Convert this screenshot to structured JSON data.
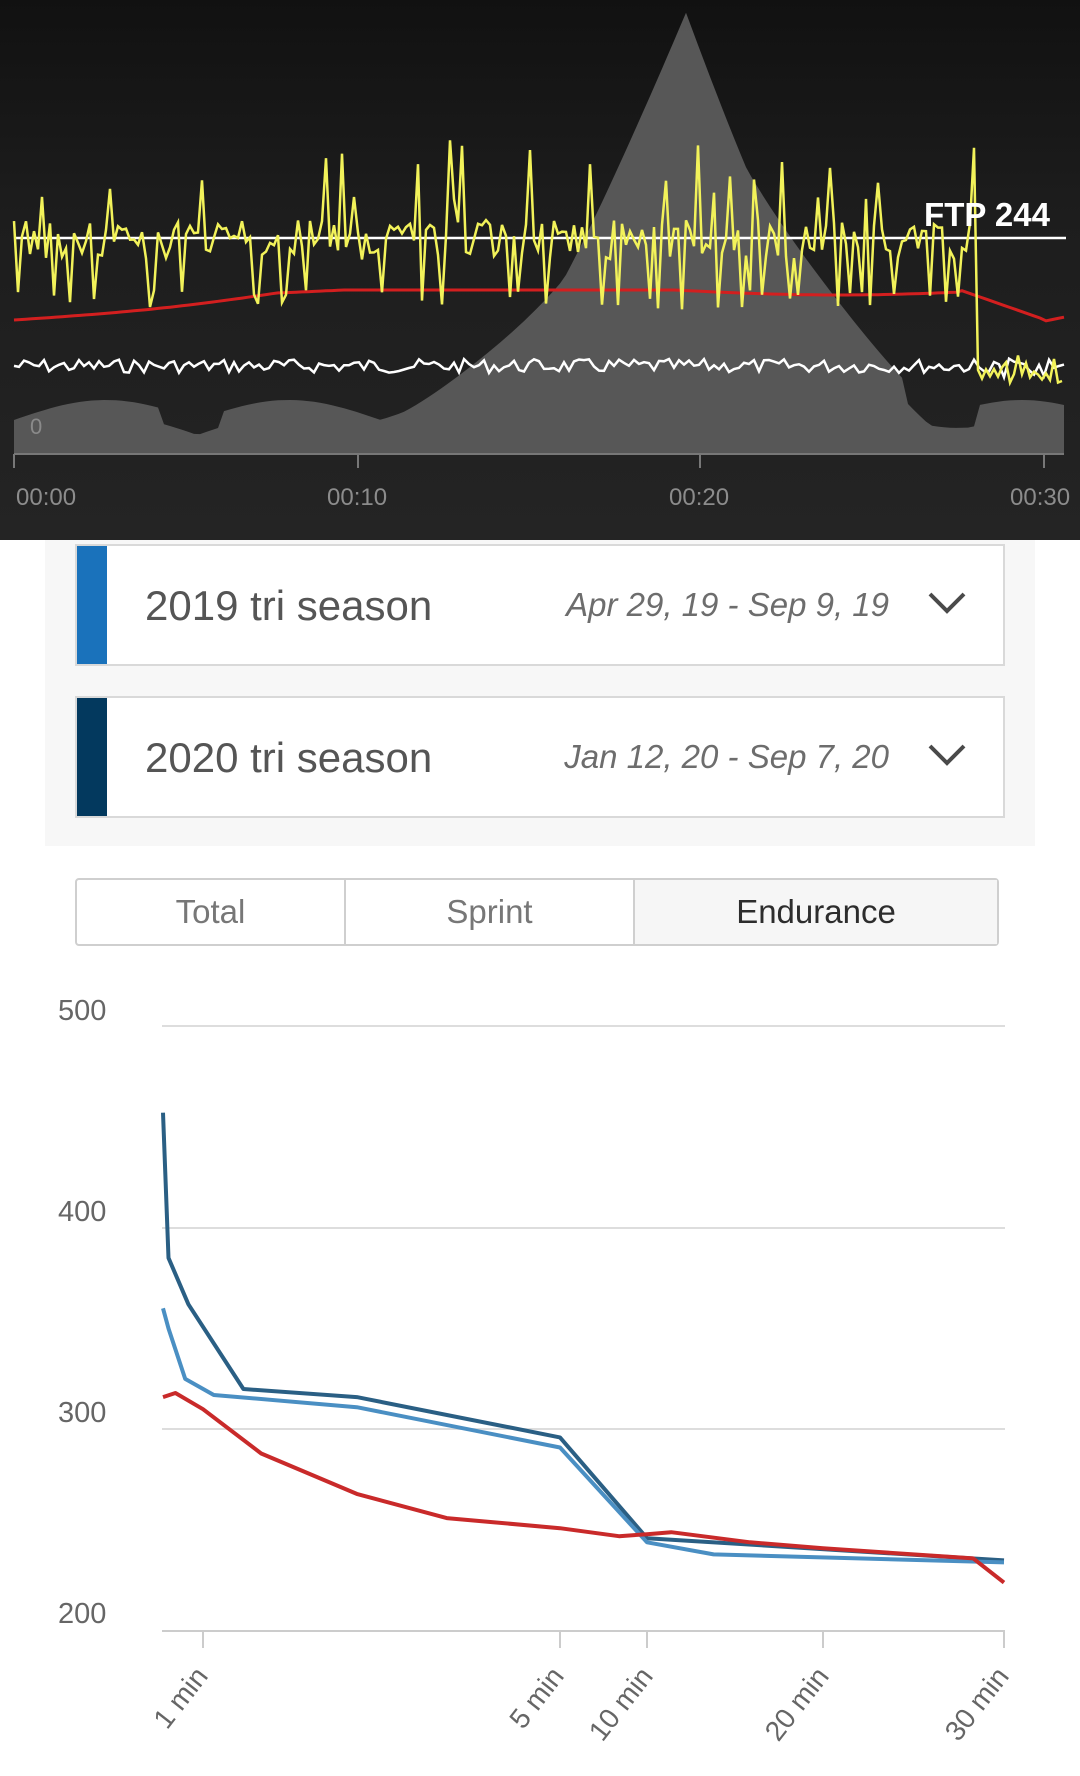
{
  "activity_chart": {
    "ftp_label": "FTP 244",
    "zero_label": "0",
    "time_ticks": [
      "00:00",
      "00:10",
      "00:20",
      "00:30"
    ],
    "colors": {
      "power": "#f2f25a",
      "heart_rate": "#d31f1f",
      "cadence": "#ffffff",
      "elevation": "#5a5a5a",
      "ftp_line": "#ffffff"
    }
  },
  "seasons": [
    {
      "name": "2019 tri season",
      "dates": "Apr 29, 19 - Sep 9, 19",
      "color": "#1a72bb",
      "icon": "chevron-down-icon"
    },
    {
      "name": "2020 tri season",
      "dates": "Jan 12, 20 - Sep 7, 20",
      "color": "#03395e",
      "icon": "chevron-down-icon"
    }
  ],
  "tabs": [
    {
      "label": "Total",
      "active": false
    },
    {
      "label": "Sprint",
      "active": false
    },
    {
      "label": "Endurance",
      "active": true
    }
  ],
  "chart_data": {
    "type": "line",
    "y_ticks": [
      "500",
      "400",
      "300",
      "200"
    ],
    "x_ticks": [
      "1 min",
      "5 min",
      "10 min",
      "20 min",
      "30 min"
    ],
    "ylim": [
      200,
      500
    ],
    "grid": true,
    "series": [
      {
        "color": "#2a5f84",
        "points": [
          [
            0.75,
            457
          ],
          [
            0.78,
            385
          ],
          [
            0.9,
            362
          ],
          [
            1.2,
            320
          ],
          [
            2,
            316
          ],
          [
            5,
            296
          ],
          [
            10,
            246
          ],
          [
            30,
            235
          ]
        ]
      },
      {
        "color": "#4a8fc3",
        "points": [
          [
            0.75,
            360
          ],
          [
            0.78,
            350
          ],
          [
            0.88,
            325
          ],
          [
            1.05,
            317
          ],
          [
            2,
            311
          ],
          [
            5,
            291
          ],
          [
            10,
            244
          ],
          [
            13,
            238
          ],
          [
            30,
            234
          ]
        ]
      },
      {
        "color": "#c92a2a",
        "points": [
          [
            0.75,
            316
          ],
          [
            0.82,
            318
          ],
          [
            1,
            310
          ],
          [
            1.3,
            288
          ],
          [
            2,
            268
          ],
          [
            3,
            256
          ],
          [
            5,
            251
          ],
          [
            8,
            247
          ],
          [
            10,
            248
          ],
          [
            11,
            249
          ],
          [
            15,
            244
          ],
          [
            20,
            241
          ],
          [
            28,
            236
          ],
          [
            30,
            224
          ]
        ]
      }
    ]
  }
}
